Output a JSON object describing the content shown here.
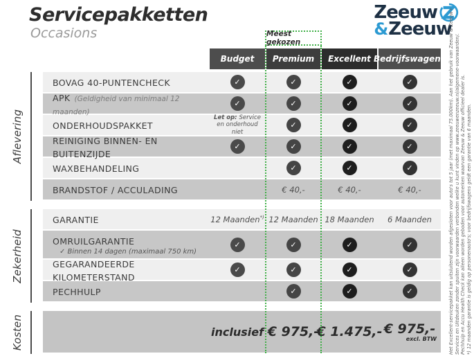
{
  "page": {
    "title": "Servicepakketten",
    "subtitle": "Occasions"
  },
  "logo": {
    "word1": "Zeeuw",
    "amp": "&",
    "word2": "Zeeuw",
    "navy": "#1d3044",
    "blue": "#2c9ad2",
    "icon": "z-swoosh-icon"
  },
  "most_chosen_label": "Meest gekozen",
  "accent_green": "#3faf46",
  "columns": [
    {
      "label": "Budget",
      "bg": "#4d4d4d",
      "check_color": "#4a4a4a"
    },
    {
      "label": "Premium",
      "bg": "#3d3d3d",
      "check_color": "#454545"
    },
    {
      "label": "Excellent",
      "bg": "#2c2c2c",
      "check_color": "#1e1e1e"
    },
    {
      "label": "Bedrijfswagens",
      "bg": "#4d4d4d",
      "check_color": "#333333"
    }
  ],
  "sections": [
    {
      "label": "Aflevering",
      "rows": [
        {
          "label": "BOVAG 40-PUNTENCHECK",
          "cells": [
            {
              "t": "check"
            },
            {
              "t": "check"
            },
            {
              "t": "check"
            },
            {
              "t": "check"
            }
          ]
        },
        {
          "label": "APK",
          "sublabel": "(Geldigheid van minimaal 12 maanden)",
          "sub_style": "inline",
          "cells": [
            {
              "t": "check"
            },
            {
              "t": "check"
            },
            {
              "t": "check"
            },
            {
              "t": "check"
            }
          ]
        },
        {
          "label": "ONDERHOUDSPAKKET",
          "cells": [
            {
              "t": "note",
              "b": "Let op:",
              "v": "Service en onderhoud niet"
            },
            {
              "t": "check"
            },
            {
              "t": "check"
            },
            {
              "t": "check"
            }
          ]
        },
        {
          "label": "REINIGING BINNEN- EN BUITENZIJDE",
          "cells": [
            {
              "t": "check"
            },
            {
              "t": "check"
            },
            {
              "t": "check"
            },
            {
              "t": "check"
            }
          ]
        },
        {
          "label": "WAXBEHANDELING",
          "cells": [
            {
              "t": "empty"
            },
            {
              "t": "check"
            },
            {
              "t": "check"
            },
            {
              "t": "check"
            }
          ]
        },
        {
          "label": "BRANDSTOF / ACCULADING",
          "cells": [
            {
              "t": "empty"
            },
            {
              "t": "text",
              "v": "€ 40,-"
            },
            {
              "t": "text",
              "v": "€ 40,-"
            },
            {
              "t": "text",
              "v": "€ 40,-"
            }
          ]
        }
      ]
    },
    {
      "label": "Zekerheid",
      "rows": [
        {
          "label": "GARANTIE",
          "cells": [
            {
              "t": "text",
              "v": "12 Maanden",
              "sup": "*)"
            },
            {
              "t": "text",
              "v": "12 Maanden"
            },
            {
              "t": "text",
              "v": "18 Maanden"
            },
            {
              "t": "text",
              "v": "6 Maanden"
            }
          ]
        },
        {
          "label": "OMRUILGARANTIE",
          "sublabel": "✓   Binnen 14 dagen (maximaal 750 km)",
          "sub_style": "block",
          "tall": true,
          "cells": [
            {
              "t": "check"
            },
            {
              "t": "check"
            },
            {
              "t": "check"
            },
            {
              "t": "check"
            }
          ]
        },
        {
          "label": "GEGARANDEERDE KILOMETERSTAND",
          "cells": [
            {
              "t": "check"
            },
            {
              "t": "check"
            },
            {
              "t": "check"
            },
            {
              "t": "check"
            }
          ]
        },
        {
          "label": "PECHHULP",
          "cells": [
            {
              "t": "empty"
            },
            {
              "t": "check"
            },
            {
              "t": "check"
            },
            {
              "t": "check"
            }
          ]
        }
      ]
    },
    {
      "label": "Kosten",
      "rows": [
        {
          "label": "",
          "big": true,
          "cells": [
            {
              "t": "price",
              "v": "inclusief",
              "small": true
            },
            {
              "t": "price",
              "v": "€ 975,-"
            },
            {
              "t": "price",
              "v": "€ 1.475,-"
            },
            {
              "t": "price",
              "v": "€ 975,-",
              "sub": "excl. BTW"
            }
          ]
        }
      ]
    }
  ],
  "fineprint": [
    "Het Excellent-servicepakket kan uitsluitend worden afgesloten voor auto's tot 5 jaar (met maximaal 75.000km). Aan het gebruik van Zeeuw & Zeeuw+",
    "Services en Uitdeuken zonder spuiten zijn voorwaarden verbonden welke u kunt vinden op www.zeeuwenzeeuw.nl/algemene-voorwaarden/.",
    "Pechhulp en Accu Health Check kan alleen worden geboden voor automerken waarvan Zeeuw & Zeeuw officieel dealer is.",
    "*) 12 maanden garantie is geldig op personenauto's; voor bedrijfswagens geldt een garantie van 6 maanden."
  ]
}
